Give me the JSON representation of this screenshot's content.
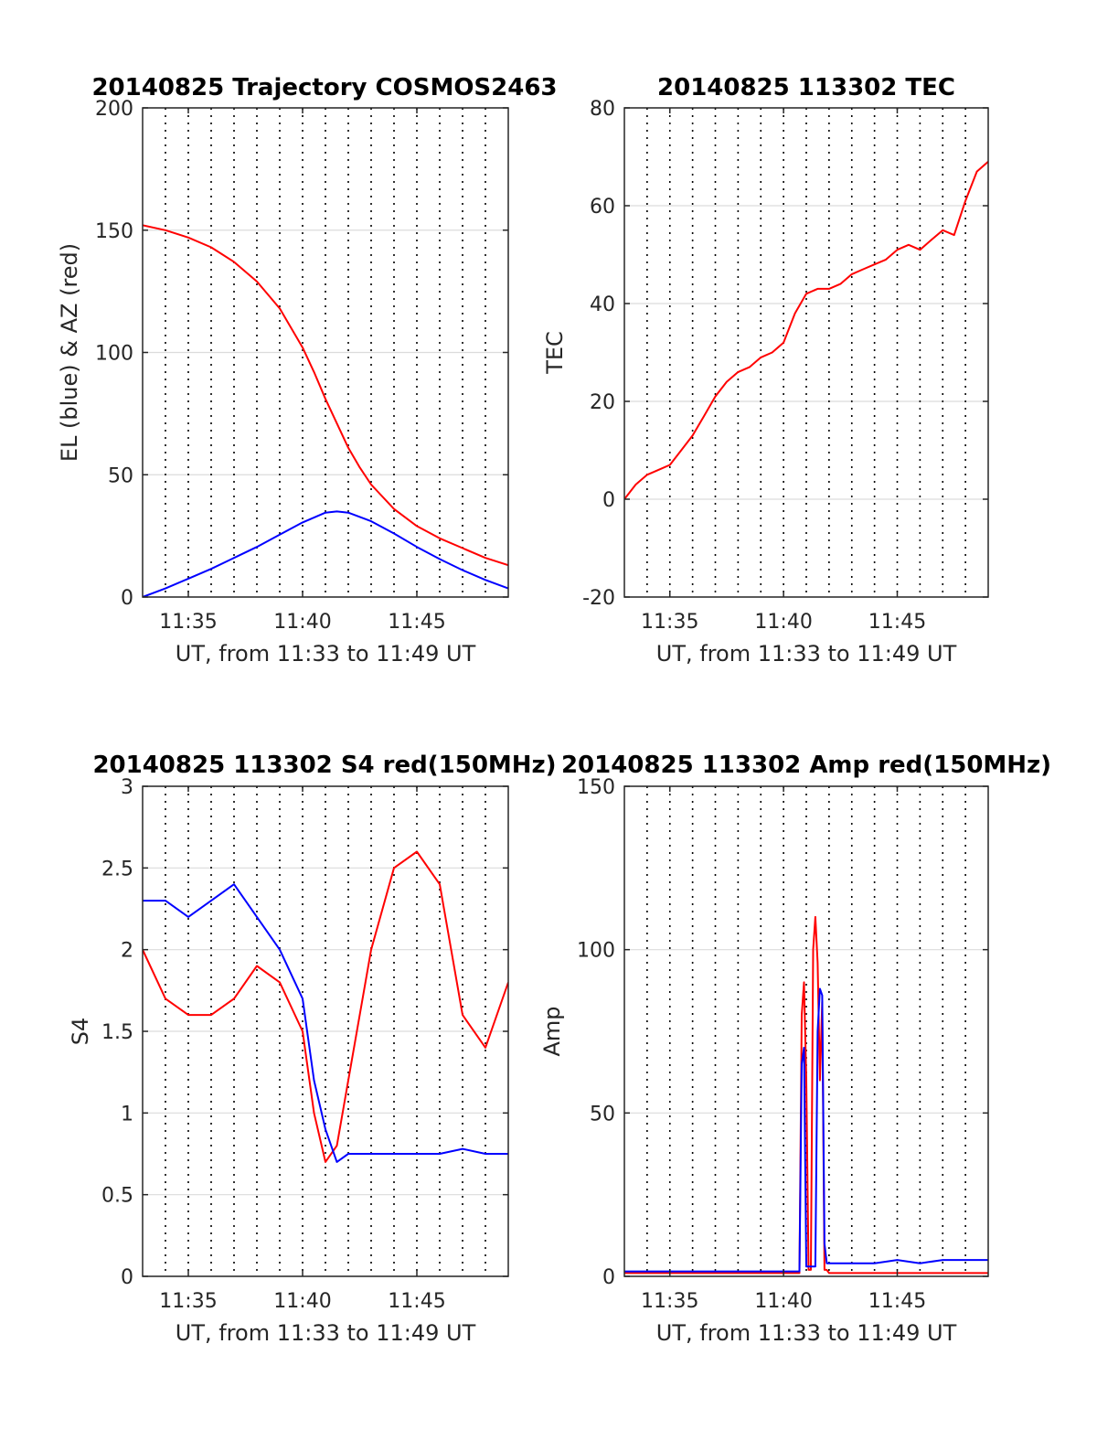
{
  "chart_data": [
    {
      "type": "line",
      "title": "20140825 Trajectory COSMOS2463",
      "xlabel": "UT, from 11:33 to 11:49 UT",
      "ylabel": "EL (blue) & AZ (red)",
      "xlim": [
        33,
        49
      ],
      "ylim": [
        0,
        200
      ],
      "xticks": [
        35,
        40,
        45
      ],
      "xtick_labels": [
        "11:35",
        "11:40",
        "11:45"
      ],
      "yticks": [
        0,
        50,
        100,
        150,
        200
      ],
      "ytick_labels": [
        "0",
        "50",
        "100",
        "150",
        "200"
      ],
      "grid": true,
      "series": [
        {
          "color": "#ff0000",
          "x": [
            33,
            34,
            35,
            36,
            37,
            38,
            39,
            40,
            40.5,
            41,
            41.5,
            42,
            42.5,
            43,
            44,
            45,
            46,
            47,
            48,
            49
          ],
          "y": [
            152,
            150,
            147,
            143,
            137,
            129,
            118,
            102,
            92,
            81,
            71,
            61,
            53,
            46,
            36,
            29,
            24,
            20,
            16,
            13
          ]
        },
        {
          "color": "#0000ff",
          "x": [
            33,
            34,
            35,
            36,
            37,
            38,
            39,
            40,
            41,
            41.5,
            42,
            43,
            44,
            45,
            46,
            47,
            48,
            49
          ],
          "y": [
            0,
            3.5,
            7.5,
            11.5,
            16,
            20.5,
            25.5,
            30.5,
            34.5,
            35,
            34.5,
            31,
            26,
            20.5,
            15.5,
            11,
            7,
            3.5
          ]
        }
      ]
    },
    {
      "type": "line",
      "title": "20140825 113302 TEC",
      "xlabel": "UT, from 11:33 to 11:49 UT",
      "ylabel": "TEC",
      "xlim": [
        33,
        49
      ],
      "ylim": [
        -20,
        80
      ],
      "xticks": [
        35,
        40,
        45
      ],
      "xtick_labels": [
        "11:35",
        "11:40",
        "11:45"
      ],
      "yticks": [
        -20,
        0,
        20,
        40,
        60,
        80
      ],
      "ytick_labels": [
        "-20",
        "0",
        "20",
        "40",
        "60",
        "80"
      ],
      "grid": true,
      "series": [
        {
          "color": "#ff0000",
          "x": [
            33,
            33.5,
            34,
            34.5,
            35,
            35.5,
            36,
            36.5,
            37,
            37.5,
            38,
            38.5,
            39,
            39.5,
            40,
            40.5,
            41,
            41.5,
            42,
            42.5,
            43,
            43.5,
            44,
            44.5,
            45,
            45.5,
            46,
            46.5,
            47,
            47.5,
            48,
            48.5,
            49
          ],
          "y": [
            0,
            3,
            5,
            6,
            7,
            10,
            13,
            17,
            21,
            24,
            26,
            27,
            29,
            30,
            32,
            38,
            42,
            43,
            43,
            44,
            46,
            47,
            48,
            49,
            51,
            52,
            51,
            53,
            55,
            54,
            61,
            67,
            69
          ]
        }
      ]
    },
    {
      "type": "line",
      "title": "20140825 113302 S4 red(150MHz)",
      "xlabel": "UT, from 11:33 to 11:49 UT",
      "ylabel": "S4",
      "xlim": [
        33,
        49
      ],
      "ylim": [
        0,
        3
      ],
      "xticks": [
        35,
        40,
        45
      ],
      "xtick_labels": [
        "11:35",
        "11:40",
        "11:45"
      ],
      "yticks": [
        0,
        0.5,
        1,
        1.5,
        2,
        2.5,
        3
      ],
      "ytick_labels": [
        "0",
        "0.5",
        "1",
        "1.5",
        "2",
        "2.5",
        "3"
      ],
      "grid": true,
      "series": [
        {
          "color": "#ff0000",
          "x": [
            33,
            34,
            35,
            36,
            37,
            38,
            39,
            40,
            40.5,
            41,
            41.5,
            42,
            43,
            44,
            45,
            46,
            47,
            48,
            49
          ],
          "y": [
            2.0,
            1.7,
            1.6,
            1.6,
            1.7,
            1.9,
            1.8,
            1.5,
            1.0,
            0.7,
            0.8,
            1.2,
            2.0,
            2.5,
            2.6,
            2.4,
            1.6,
            1.4,
            1.8
          ]
        },
        {
          "color": "#0000ff",
          "x": [
            33,
            34,
            35,
            36,
            37,
            38,
            39,
            40,
            40.5,
            41,
            41.5,
            42,
            43,
            44,
            45,
            46,
            47,
            48,
            49
          ],
          "y": [
            2.3,
            2.3,
            2.2,
            2.3,
            2.4,
            2.2,
            2.0,
            1.7,
            1.2,
            0.9,
            0.7,
            0.75,
            0.75,
            0.75,
            0.75,
            0.75,
            0.78,
            0.75,
            0.75
          ]
        }
      ]
    },
    {
      "type": "line",
      "title": "20140825 113302 Amp red(150MHz)",
      "xlabel": "UT, from 11:33 to 11:49 UT",
      "ylabel": "Amp",
      "xlim": [
        33,
        49
      ],
      "ylim": [
        0,
        150
      ],
      "xticks": [
        35,
        40,
        45
      ],
      "xtick_labels": [
        "11:35",
        "11:40",
        "11:45"
      ],
      "yticks": [
        0,
        50,
        100,
        150
      ],
      "ytick_labels": [
        "0",
        "50",
        "100",
        "150"
      ],
      "grid": true,
      "series": [
        {
          "color": "#ff0000",
          "x": [
            33,
            40.7,
            40.8,
            40.9,
            41.0,
            41.1,
            41.2,
            41.3,
            41.4,
            41.5,
            41.6,
            41.7,
            41.8,
            41.9,
            42.0,
            49
          ],
          "y": [
            1,
            1,
            80,
            90,
            60,
            2,
            2,
            100,
            110,
            96,
            60,
            84,
            2,
            2,
            1,
            1
          ]
        },
        {
          "color": "#0000ff",
          "x": [
            33,
            36,
            40,
            40.7,
            40.8,
            40.9,
            41.0,
            41.1,
            41.4,
            41.5,
            41.6,
            41.7,
            41.8,
            41.9,
            42.0,
            43,
            44,
            45,
            46,
            47,
            48,
            49
          ],
          "y": [
            1.5,
            1.5,
            1.5,
            1.5,
            65,
            70,
            3,
            3,
            3,
            75,
            88,
            86,
            10,
            4,
            4,
            4,
            4,
            5,
            4,
            5,
            5,
            5
          ]
        }
      ]
    }
  ]
}
